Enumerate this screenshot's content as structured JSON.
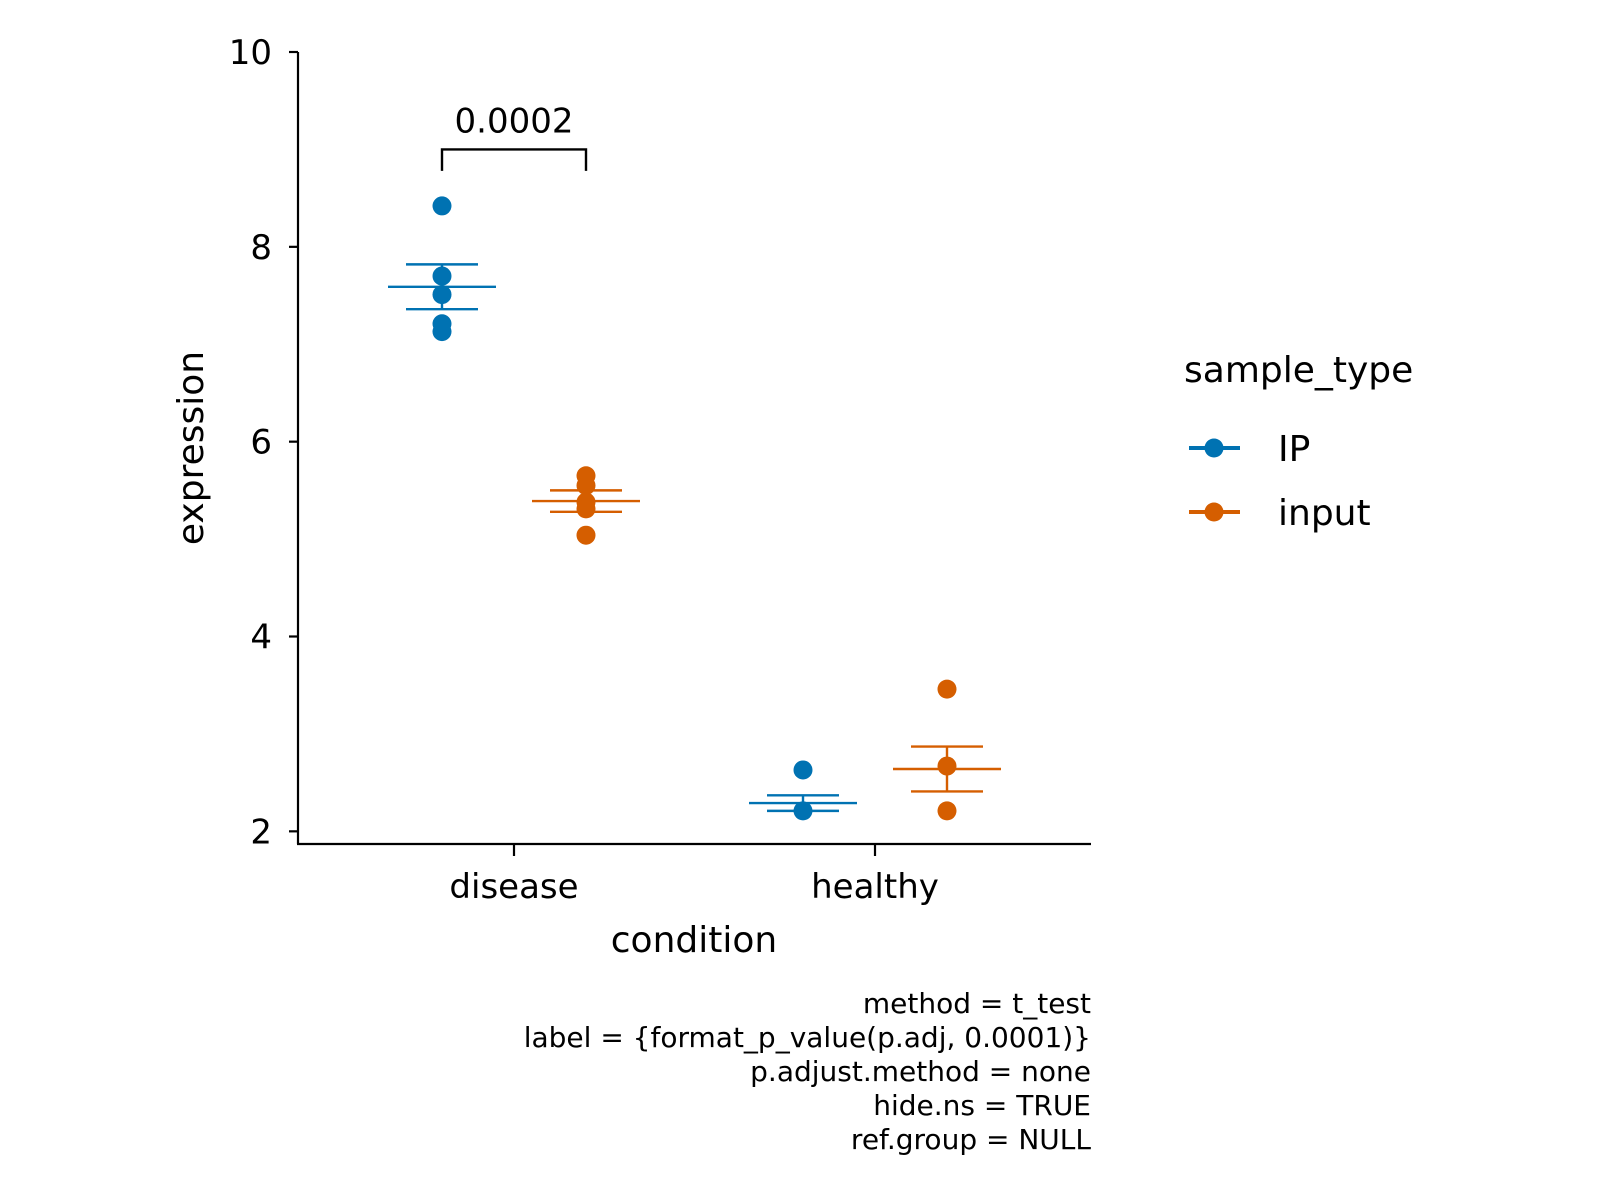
{
  "chart_data": {
    "type": "scatter",
    "subtype": "dot plot with mean and standard error bars",
    "xlabel": "condition",
    "ylabel": "expression",
    "categories": [
      "disease",
      "healthy"
    ],
    "y_ticks": [
      "2",
      "4",
      "6",
      "8",
      "10"
    ],
    "ylim": [
      1.87,
      10.0
    ],
    "legend": {
      "title": "sample_type",
      "position": "right",
      "entries": [
        "IP",
        "input"
      ]
    },
    "colors": {
      "IP": "#0072B2",
      "input": "#D55E00"
    },
    "series": [
      {
        "name": "IP",
        "points": {
          "disease": [
            8.42,
            7.7,
            7.51,
            7.21,
            7.13
          ],
          "healthy": [
            2.63,
            2.21
          ]
        },
        "summary": {
          "disease": {
            "mean": 7.59,
            "low": 7.36,
            "high": 7.82
          },
          "healthy": {
            "mean": 2.29,
            "low": 2.21,
            "high": 2.37
          }
        }
      },
      {
        "name": "input",
        "points": {
          "disease": [
            5.65,
            5.55,
            5.38,
            5.31,
            5.04
          ],
          "healthy": [
            3.46,
            2.67,
            2.21
          ]
        },
        "summary": {
          "disease": {
            "mean": 5.39,
            "low": 5.28,
            "high": 5.5
          },
          "healthy": {
            "mean": 2.64,
            "low": 2.41,
            "high": 2.87
          }
        }
      }
    ],
    "annotations": [
      {
        "category": "disease",
        "from": "IP",
        "to": "input",
        "label": "0.0002",
        "bracket_y": 9.0,
        "tip_y": 8.78
      }
    ],
    "caption": [
      "method = t_test",
      "label = {format_p_value(p.adj, 0.0001)}",
      "p.adjust.method = none",
      "hide.ns = TRUE",
      "ref.group = NULL"
    ]
  }
}
